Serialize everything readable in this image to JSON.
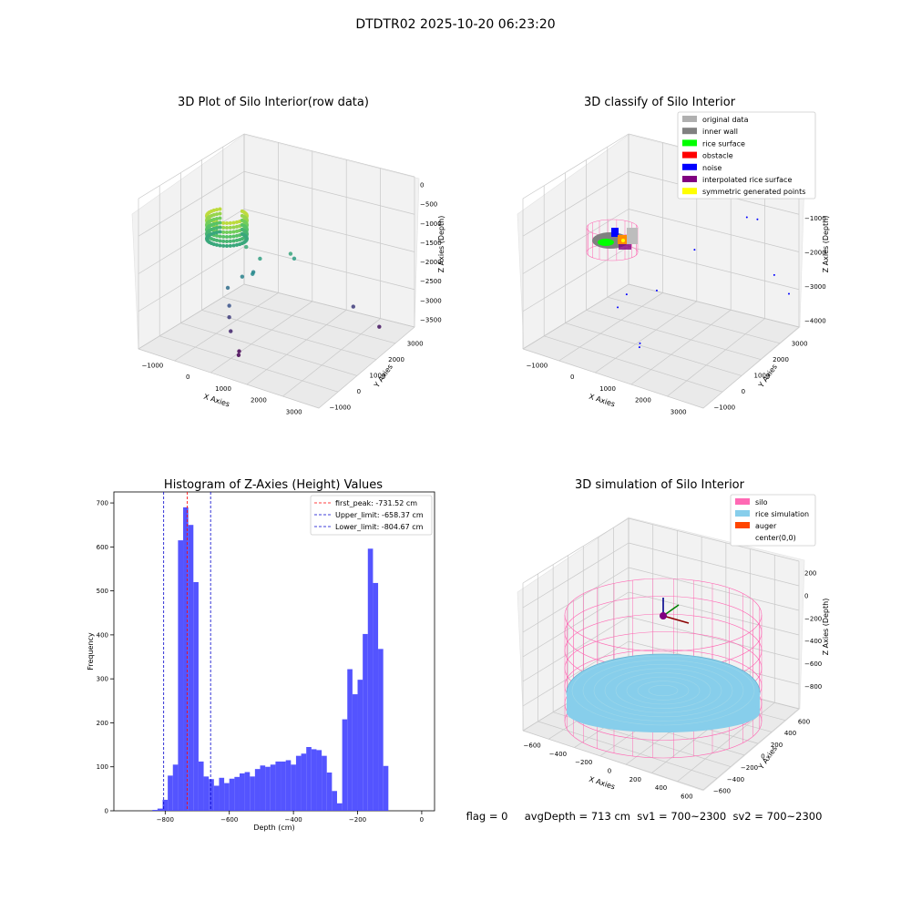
{
  "figure_title": "DTDTR02 2025-10-20 06:23:20",
  "status_line": "flag = 0     avgDepth = 713 cm  sv1 = 700~2300  sv2 = 700~2300",
  "colors": {
    "histogram_bar": "#4b4bff",
    "first_peak_line": "#ff0000",
    "limit_lines": "#0000cc",
    "original_data": "#b0b0b0",
    "inner_wall": "#808080",
    "rice_surface": "#00ff00",
    "obstacle": "#ff0000",
    "noise": "#0000ff",
    "interpolated_rice_surface": "#800080",
    "symmetric_generated_points": "#ffff00",
    "silo": "#ff69b4",
    "rice_simulation": "#87ceeb",
    "auger": "#ff4500"
  },
  "chart_data": [
    {
      "type": "scatter",
      "title": "3D Plot of Silo Interior(row data)",
      "xlabel": "X Axies",
      "ylabel": "Y Axies",
      "zlabel": "Z Axies (Depth)",
      "xticks": [
        "−1000",
        "0",
        "1000",
        "2000",
        "3000"
      ],
      "yticks": [
        "−1000",
        "0",
        "1000",
        "2000",
        "3000"
      ],
      "zticks": [
        "0",
        "−500",
        "−1000",
        "−1500",
        "−2000",
        "−2500",
        "−3000",
        "−3500"
      ],
      "xlim": [
        -1500,
        3600
      ],
      "ylim": [
        -1500,
        3600
      ],
      "zlim": [
        -3700,
        200
      ],
      "colormap": "viridis",
      "points": [
        {
          "x": 300,
          "y": 500,
          "z": -2000
        },
        {
          "x": 450,
          "y": 800,
          "z": -1950
        },
        {
          "x": 700,
          "y": 700,
          "z": -1500
        },
        {
          "x": 600,
          "y": 500,
          "z": -1850
        },
        {
          "x": 1300,
          "y": 1200,
          "z": -1400
        },
        {
          "x": 1350,
          "y": 1300,
          "z": -1550
        },
        {
          "x": 2400,
          "y": 2500,
          "z": -3000
        },
        {
          "x": 3000,
          "y": 2800,
          "z": -3500
        },
        {
          "x": 0,
          "y": 300,
          "z": -2300
        },
        {
          "x": 100,
          "y": 200,
          "z": -2700
        },
        {
          "x": 100,
          "y": 200,
          "z": -3000
        },
        {
          "x": 200,
          "y": 100,
          "z": -3300
        },
        {
          "x": 500,
          "y": 0,
          "z": -3700
        },
        {
          "x": 600,
          "y": -200,
          "z": -3700
        },
        {
          "x": 300,
          "y": 700,
          "z": -1300
        }
      ]
    },
    {
      "type": "scatter",
      "title": "3D classify of Silo Interior",
      "xlabel": "X Axies",
      "ylabel": "Y Axies",
      "zlabel": "Z Axies (Depth)",
      "xticks": [
        "−1000",
        "0",
        "1000",
        "2000",
        "3000"
      ],
      "yticks": [
        "−1000",
        "0",
        "1000",
        "2000",
        "3000"
      ],
      "zticks": [
        "0",
        "−1000",
        "−2000",
        "−3000",
        "−4000"
      ],
      "xlim": [
        -1500,
        3600
      ],
      "ylim": [
        -1500,
        3600
      ],
      "zlim": [
        -4200,
        200
      ],
      "legend": [
        "original data",
        "inner wall",
        "rice surface",
        "obstacle",
        "noise",
        "interpolated rice surface",
        "symmetric generated points"
      ],
      "legend_position": "top-right",
      "noise_points": [
        {
          "x": 2500,
          "y": 2800,
          "z": -900
        },
        {
          "x": 2700,
          "y": 3000,
          "z": -1000
        },
        {
          "x": 1700,
          "y": 1500,
          "z": -1500
        },
        {
          "x": 3200,
          "y": 3000,
          "z": -2500
        },
        {
          "x": 3300,
          "y": 3600,
          "z": -3300
        },
        {
          "x": 1000,
          "y": 800,
          "z": -2600
        },
        {
          "x": 300,
          "y": 500,
          "z": -2800
        },
        {
          "x": 100,
          "y": 400,
          "z": -3200
        },
        {
          "x": 800,
          "y": 300,
          "z": -4000
        },
        {
          "x": 900,
          "y": 100,
          "z": -4000
        }
      ]
    },
    {
      "type": "bar",
      "title": "Histogram of Z-Axies (Height) Values",
      "xlabel": "Depth (cm)",
      "ylabel": "Frequency",
      "xlim": [
        -960,
        40
      ],
      "ylim": [
        0,
        725
      ],
      "xticks": [
        -800,
        -600,
        -400,
        -200,
        0
      ],
      "xtick_labels": [
        "−800",
        "−600",
        "−400",
        "−200",
        "0"
      ],
      "yticks": [
        0,
        100,
        200,
        300,
        400,
        500,
        600,
        700
      ],
      "bin_width": 16,
      "bin_start": -840,
      "values": [
        2,
        5,
        25,
        80,
        105,
        615,
        690,
        650,
        520,
        112,
        78,
        72,
        57,
        75,
        63,
        73,
        77,
        85,
        88,
        78,
        95,
        103,
        100,
        105,
        112,
        112,
        115,
        105,
        125,
        130,
        145,
        140,
        138,
        125,
        87,
        45,
        17,
        208,
        322,
        265,
        298,
        402,
        596,
        518,
        368,
        102
      ],
      "vlines": [
        {
          "label": "first_peak: -731.52 cm",
          "x": -731.52,
          "style": "dashed",
          "color": "#ff0000"
        },
        {
          "label": "Upper_limit: -658.37 cm",
          "x": -658.37,
          "style": "dashed",
          "color": "#0000cc"
        },
        {
          "label": "Lower_limit: -804.67 cm",
          "x": -804.67,
          "style": "dashed",
          "color": "#0000cc"
        }
      ],
      "legend_position": "top-right"
    },
    {
      "type": "scatter",
      "title": "3D simulation of Silo Interior",
      "xlabel": "X Axies",
      "ylabel": "Y Axies",
      "zlabel": "Z Axies (Depth)",
      "xticks": [
        "−600",
        "−400",
        "−200",
        "0",
        "200",
        "400",
        "600"
      ],
      "yticks": [
        "−600",
        "−400",
        "−200",
        "0",
        "200",
        "400",
        "600"
      ],
      "zticks": [
        "200",
        "0",
        "−200",
        "−400",
        "−600",
        "−800"
      ],
      "xlim": [
        -700,
        700
      ],
      "ylim": [
        -700,
        700
      ],
      "zlim": [
        -1000,
        300
      ],
      "legend": [
        "silo",
        "rice simulation",
        "auger",
        "center(0,0)"
      ],
      "legend_position": "top-right",
      "silo_radius": 700,
      "silo_top": 0,
      "silo_bottom": -900,
      "rice_level": -713
    }
  ]
}
